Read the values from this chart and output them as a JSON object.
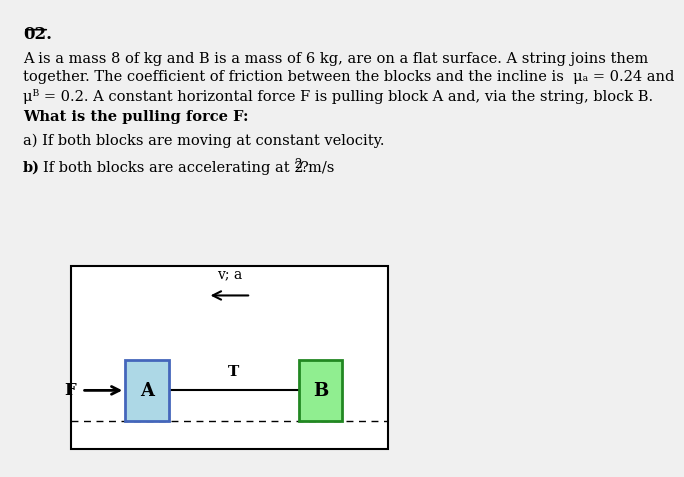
{
  "bg_color": "#f0f0f0",
  "title_text": "02.",
  "line1": "A is a mass 8 of kg and B is a mass of 6 kg, are on a flat surface. A string joins them",
  "line2": "together. The coefficient of friction between the blocks and the incline is  μₐ = 0.24 and",
  "line3": "μᴮ = 0.2. A constant horizontal force F is pulling block A and, via the string, block B.",
  "bold_line": "What is the pulling force F:",
  "part_a": "a) If both blocks are moving at constant velocity.",
  "part_b": "b) If both blocks are accelerating at 2 m/s²?",
  "block_A_color": "#add8e6",
  "block_B_color": "#90ee90",
  "block_A_border": "#4466bb",
  "block_B_border": "#228822",
  "text_color": "#000000",
  "font_size_body": 10.5,
  "font_size_title": 12
}
